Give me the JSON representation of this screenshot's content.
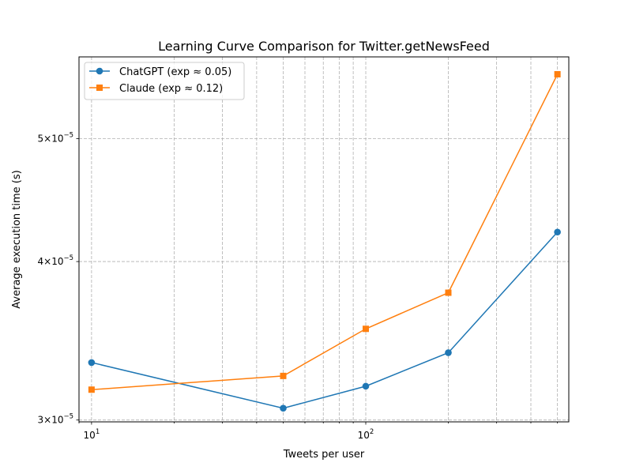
{
  "chart_data": {
    "type": "line",
    "title": "Learning Curve Comparison for Twitter.getNewsFeed",
    "xlabel": "Tweets per user",
    "ylabel": "Average execution time (s)",
    "xscale": "log",
    "yscale": "log",
    "xlim": [
      9,
      550
    ],
    "ylim": [
      2.99e-05,
      5.8e-05
    ],
    "x": [
      10,
      50,
      100,
      200,
      500
    ],
    "grid": true,
    "legend_position": "top-left",
    "series": [
      {
        "name": "ChatGPT (exp ≈ 0.05)",
        "color": "#1f77b4",
        "marker": "circle",
        "values": [
          3.33e-05,
          3.065e-05,
          3.19e-05,
          3.39e-05,
          4.22e-05
        ]
      },
      {
        "name": "Claude (exp ≈ 0.12)",
        "color": "#ff7f0e",
        "marker": "square",
        "values": [
          3.17e-05,
          3.25e-05,
          3.54e-05,
          3.78e-05,
          5.62e-05
        ]
      }
    ],
    "xticks": [
      {
        "value": 10,
        "base": "10",
        "exp": "1"
      },
      {
        "value": 100,
        "base": "10",
        "exp": "2"
      }
    ],
    "yticks": [
      {
        "value": 3e-05,
        "mantissa": "3",
        "base": "10",
        "exp": "−5"
      },
      {
        "value": 4e-05,
        "mantissa": "4",
        "base": "10",
        "exp": "−5"
      },
      {
        "value": 5e-05,
        "mantissa": "5",
        "base": "10",
        "exp": "−5"
      }
    ]
  }
}
